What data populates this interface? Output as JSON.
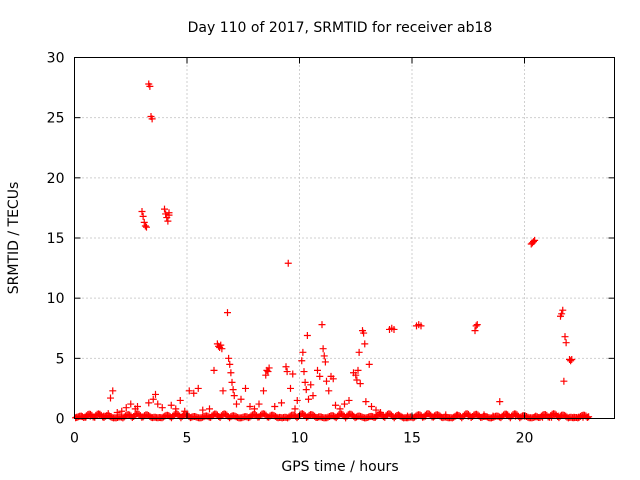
{
  "chart_data": {
    "type": "scatter",
    "title": "Day 110 of 2017, SRMTID for receiver ab18",
    "xlabel": "GPS time / hours",
    "ylabel": "SRMTID / TECUs",
    "xlim": [
      0,
      24
    ],
    "ylim": [
      0,
      30
    ],
    "xticks": [
      0,
      5,
      10,
      15,
      20
    ],
    "yticks": [
      0,
      5,
      10,
      15,
      20,
      25,
      30
    ],
    "grid": true,
    "marker": "+",
    "color": "#ff0000",
    "series": [
      {
        "name": "SRMTID",
        "points": [
          [
            0.1,
            0.1
          ],
          [
            0.3,
            0.2
          ],
          [
            0.5,
            0.1
          ],
          [
            0.7,
            0.2
          ],
          [
            0.9,
            0.1
          ],
          [
            1.1,
            0.3
          ],
          [
            1.3,
            0.2
          ],
          [
            1.5,
            0.4
          ],
          [
            1.6,
            1.7
          ],
          [
            1.7,
            2.3
          ],
          [
            1.9,
            0.5
          ],
          [
            2.1,
            0.6
          ],
          [
            2.3,
            0.9
          ],
          [
            2.5,
            1.2
          ],
          [
            2.7,
            0.8
          ],
          [
            2.8,
            1.0
          ],
          [
            3.0,
            17.2
          ],
          [
            3.05,
            16.8
          ],
          [
            3.1,
            16.3
          ],
          [
            3.15,
            16.0
          ],
          [
            3.2,
            15.9
          ],
          [
            3.3,
            27.8
          ],
          [
            3.35,
            27.6
          ],
          [
            3.4,
            25.1
          ],
          [
            3.45,
            24.9
          ],
          [
            3.3,
            1.3
          ],
          [
            3.5,
            1.6
          ],
          [
            3.6,
            2.0
          ],
          [
            3.7,
            1.2
          ],
          [
            3.9,
            0.9
          ],
          [
            4.0,
            17.4
          ],
          [
            4.05,
            17.0
          ],
          [
            4.1,
            16.7
          ],
          [
            4.15,
            16.4
          ],
          [
            4.2,
            17.1
          ],
          [
            4.2,
            16.9
          ],
          [
            4.3,
            1.1
          ],
          [
            4.5,
            0.8
          ],
          [
            4.7,
            1.5
          ],
          [
            4.9,
            0.6
          ],
          [
            5.1,
            2.3
          ],
          [
            5.3,
            2.1
          ],
          [
            5.5,
            2.5
          ],
          [
            5.7,
            0.7
          ],
          [
            6.0,
            0.8
          ],
          [
            6.2,
            4.0
          ],
          [
            6.35,
            6.2
          ],
          [
            6.4,
            6.0
          ],
          [
            6.45,
            5.9
          ],
          [
            6.5,
            6.1
          ],
          [
            6.55,
            5.8
          ],
          [
            6.6,
            2.3
          ],
          [
            6.8,
            8.8
          ],
          [
            6.85,
            5.0
          ],
          [
            6.9,
            4.5
          ],
          [
            6.95,
            3.8
          ],
          [
            7.0,
            3.0
          ],
          [
            7.05,
            2.4
          ],
          [
            7.1,
            1.9
          ],
          [
            7.2,
            1.2
          ],
          [
            7.4,
            1.6
          ],
          [
            7.6,
            2.5
          ],
          [
            7.8,
            1.0
          ],
          [
            8.0,
            0.8
          ],
          [
            8.2,
            1.2
          ],
          [
            8.4,
            2.3
          ],
          [
            8.5,
            3.6
          ],
          [
            8.55,
            4.0
          ],
          [
            8.6,
            3.9
          ],
          [
            8.65,
            4.2
          ],
          [
            8.9,
            1.0
          ],
          [
            9.2,
            1.3
          ],
          [
            9.4,
            4.3
          ],
          [
            9.45,
            3.9
          ],
          [
            9.5,
            12.9
          ],
          [
            9.6,
            2.5
          ],
          [
            9.7,
            3.7
          ],
          [
            9.8,
            0.8
          ],
          [
            9.9,
            1.5
          ],
          [
            10.1,
            4.8
          ],
          [
            10.15,
            5.5
          ],
          [
            10.2,
            3.9
          ],
          [
            10.25,
            3.0
          ],
          [
            10.3,
            2.4
          ],
          [
            10.35,
            6.9
          ],
          [
            10.4,
            1.6
          ],
          [
            10.5,
            2.8
          ],
          [
            10.6,
            1.9
          ],
          [
            10.8,
            4.0
          ],
          [
            10.9,
            3.5
          ],
          [
            11.0,
            7.8
          ],
          [
            11.05,
            5.8
          ],
          [
            11.1,
            5.2
          ],
          [
            11.15,
            4.7
          ],
          [
            11.2,
            3.1
          ],
          [
            11.3,
            2.3
          ],
          [
            11.4,
            3.5
          ],
          [
            11.5,
            3.3
          ],
          [
            11.6,
            1.1
          ],
          [
            11.8,
            0.8
          ],
          [
            12.0,
            1.2
          ],
          [
            12.2,
            1.5
          ],
          [
            12.4,
            3.8
          ],
          [
            12.5,
            3.6
          ],
          [
            12.55,
            3.2
          ],
          [
            12.6,
            4.0
          ],
          [
            12.65,
            5.5
          ],
          [
            12.7,
            2.9
          ],
          [
            12.8,
            7.3
          ],
          [
            12.85,
            7.1
          ],
          [
            12.9,
            6.2
          ],
          [
            12.95,
            1.4
          ],
          [
            13.1,
            4.5
          ],
          [
            13.2,
            1.0
          ],
          [
            13.4,
            0.7
          ],
          [
            13.6,
            0.5
          ],
          [
            14.0,
            7.4
          ],
          [
            14.1,
            7.5
          ],
          [
            14.2,
            7.4
          ],
          [
            14.4,
            0.3
          ],
          [
            14.8,
            0.2
          ],
          [
            15.2,
            7.7
          ],
          [
            15.3,
            7.8
          ],
          [
            15.4,
            7.7
          ],
          [
            15.6,
            0.2
          ],
          [
            16.0,
            0.2
          ],
          [
            16.5,
            0.3
          ],
          [
            17.0,
            0.3
          ],
          [
            17.5,
            0.2
          ],
          [
            17.8,
            7.3
          ],
          [
            17.85,
            7.7
          ],
          [
            17.9,
            7.8
          ],
          [
            18.2,
            0.3
          ],
          [
            18.6,
            0.2
          ],
          [
            18.9,
            1.4
          ],
          [
            19.2,
            0.3
          ],
          [
            19.6,
            0.2
          ],
          [
            20.0,
            0.2
          ],
          [
            20.3,
            14.5
          ],
          [
            20.35,
            14.6
          ],
          [
            20.4,
            14.7
          ],
          [
            20.45,
            14.8
          ],
          [
            20.5,
            0.2
          ],
          [
            20.8,
            0.1
          ],
          [
            21.2,
            0.1
          ],
          [
            21.5,
            0.2
          ],
          [
            21.6,
            8.5
          ],
          [
            21.65,
            8.7
          ],
          [
            21.7,
            9.0
          ],
          [
            21.75,
            3.1
          ],
          [
            21.8,
            6.8
          ],
          [
            21.85,
            6.3
          ],
          [
            22.0,
            4.9
          ],
          [
            22.05,
            4.8
          ],
          [
            22.1,
            4.9
          ],
          [
            22.2,
            0.1
          ],
          [
            22.4,
            0.1
          ],
          [
            22.6,
            0.1
          ],
          [
            22.8,
            0.1
          ]
        ]
      }
    ]
  }
}
